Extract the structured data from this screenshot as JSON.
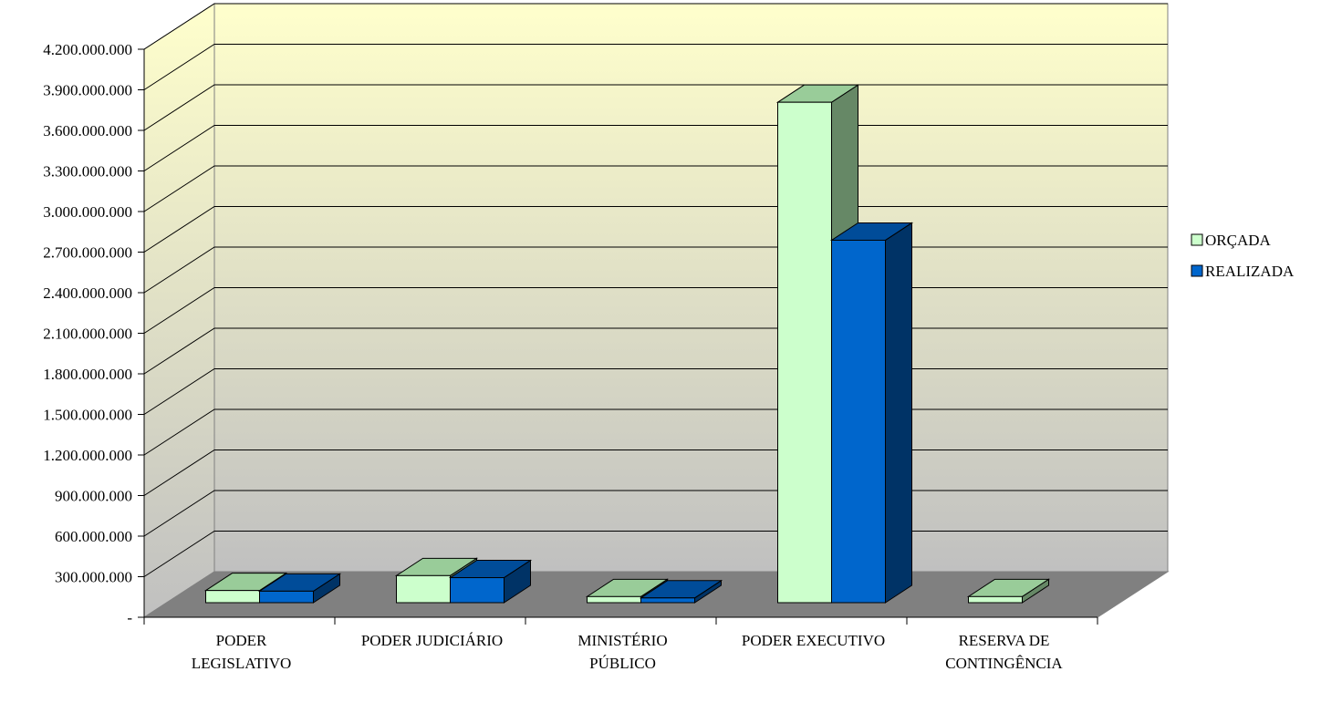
{
  "chart_data": {
    "type": "bar",
    "title": "",
    "xlabel": "",
    "ylabel": "",
    "categories": [
      [
        "PODER",
        "LEGISLATIVO"
      ],
      [
        "PODER JUDICIÁRIO"
      ],
      [
        "MINISTÉRIO",
        "PÚBLICO"
      ],
      [
        "PODER EXECUTIVO"
      ],
      [
        "RESERVA DE",
        "CONTINGÊNCIA"
      ]
    ],
    "series": [
      {
        "name": "ORÇADA",
        "color": "#CCFFCC",
        "top_color": "#99CC99",
        "side_color": "#668866",
        "values": [
          90000000,
          200000000,
          45000000,
          3700000000,
          45000000
        ]
      },
      {
        "name": "REALIZADA",
        "color": "#0066CC",
        "top_color": "#004C99",
        "side_color": "#003366",
        "values": [
          85000000,
          185000000,
          35000000,
          2680000000,
          null
        ]
      }
    ],
    "ylim": [
      0,
      4200000000
    ],
    "yticks": [
      0,
      300000000,
      600000000,
      900000000,
      1200000000,
      1500000000,
      1800000000,
      2100000000,
      2400000000,
      2700000000,
      3000000000,
      3300000000,
      3600000000,
      3900000000,
      4200000000
    ],
    "ytick_labels": [
      "-",
      "300.000.000",
      "600.000.000",
      "900.000.000",
      "1.200.000.000",
      "1.500.000.000",
      "1.800.000.000",
      "2.100.000.000",
      "2.400.000.000",
      "2.700.000.000",
      "3.000.000.000",
      "3.300.000.000",
      "3.600.000.000",
      "3.900.000.000",
      "4.200.000.000"
    ],
    "grid": true,
    "legend_position": "right",
    "wall_top_color": "#FFFFCC",
    "wall_bottom_color": "#C0C0C0",
    "floor_color": "#808080"
  }
}
